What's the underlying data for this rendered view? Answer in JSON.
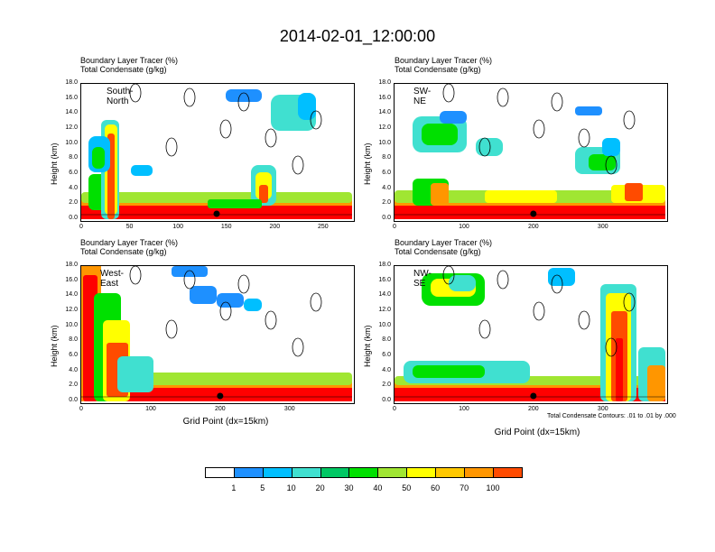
{
  "title": "2014-02-01_12:00:00",
  "panels": [
    {
      "label": "South-North",
      "header1": "Boundary Layer Tracer   (%)",
      "header2": "Total Condensate   (g/kg)",
      "ylabel": "Height (km)",
      "xlabel": "",
      "yticks": [
        "18.0",
        "16.0",
        "14.0",
        "12.0",
        "10.0",
        "8.0",
        "6.0",
        "4.0",
        "2.0",
        "0.0"
      ],
      "xticks": [
        "0",
        "50",
        "100",
        "150",
        "200",
        "250"
      ],
      "xmax": 280,
      "marker_x": 140
    },
    {
      "label": "SW-NE",
      "header1": "Boundary Layer Tracer   (%)",
      "header2": "Total Condensate   (g/kg)",
      "ylabel": "Height (km)",
      "xlabel": "",
      "yticks": [
        "18.0",
        "16.0",
        "14.0",
        "12.0",
        "10.0",
        "8.0",
        "6.0",
        "4.0",
        "2.0",
        "0.0"
      ],
      "xticks": [
        "0",
        "100",
        "200",
        "300"
      ],
      "xmax": 390,
      "marker_x": 200
    },
    {
      "label": "West-East",
      "header1": "Boundary Layer Tracer   (%)",
      "header2": "Total Condensate   (g/kg)",
      "ylabel": "Height (km)",
      "xlabel": "Grid Point (dx=15km)",
      "yticks": [
        "18.0",
        "16.0",
        "14.0",
        "12.0",
        "10.0",
        "8.0",
        "6.0",
        "4.0",
        "2.0",
        "0.0"
      ],
      "xticks": [
        "0",
        "100",
        "200",
        "300"
      ],
      "xmax": 390,
      "marker_x": 200
    },
    {
      "label": "NW-SE",
      "header1": "Boundary Layer Tracer   (%)",
      "header2": "Total Condensate   (g/kg)",
      "ylabel": "Height (km)",
      "xlabel": "Grid Point (dx=15km)",
      "note": "Total Condensate Contours: .01 to .01 by .000",
      "yticks": [
        "18.0",
        "16.0",
        "14.0",
        "12.0",
        "10.0",
        "8.0",
        "6.0",
        "4.0",
        "2.0",
        "0.0"
      ],
      "xticks": [
        "0",
        "100",
        "200",
        "300"
      ],
      "xmax": 390,
      "marker_x": 200
    }
  ],
  "colorbar": {
    "labels": [
      "1",
      "5",
      "10",
      "20",
      "30",
      "40",
      "50",
      "60",
      "70",
      "100"
    ],
    "colors": [
      "#ffffff",
      "#1e90ff",
      "#00bfff",
      "#40e0d0",
      "#00c864",
      "#00e000",
      "#a0e632",
      "#ffff00",
      "#ffc800",
      "#ff9600",
      "#ff4b00",
      "#ff0000"
    ]
  },
  "chart_data": {
    "type": "heatmap",
    "title": "2014-02-01_12:00:00",
    "variables": [
      "Boundary Layer Tracer (%)",
      "Total Condensate (g/kg)"
    ],
    "contour_note": "Total Condensate Contours: .01 to .01 by .000",
    "colorbar_levels": [
      1,
      5,
      10,
      20,
      30,
      40,
      50,
      60,
      70,
      100
    ],
    "ylim": [
      0,
      18
    ],
    "ylabel": "Height (km)",
    "xlabel": "Grid Point (dx=15km)",
    "panels": [
      {
        "name": "South-North",
        "xlim": [
          0,
          280
        ],
        "high_tracer_regions": [
          {
            "x": [
              25,
              40
            ],
            "z": [
              0,
              13
            ]
          },
          {
            "x": [
              180,
              200
            ],
            "z": [
              2,
              7
            ]
          }
        ]
      },
      {
        "name": "SW-NE",
        "xlim": [
          0,
          390
        ],
        "high_tracer_regions": [
          {
            "x": [
              20,
              60
            ],
            "z": [
              0,
              4
            ]
          },
          {
            "x": [
              270,
              320
            ],
            "z": [
              5,
              9
            ]
          }
        ]
      },
      {
        "name": "West-East",
        "xlim": [
          0,
          390
        ],
        "high_tracer_regions": [
          {
            "x": [
              0,
              25
            ],
            "z": [
              0,
              17
            ]
          },
          {
            "x": [
              20,
              60
            ],
            "z": [
              0,
              6
            ]
          }
        ]
      },
      {
        "name": "NW-SE",
        "xlim": [
          0,
          390
        ],
        "high_tracer_regions": [
          {
            "x": [
              240,
              270
            ],
            "z": [
              0,
              15
            ]
          },
          {
            "x": [
              20,
              120
            ],
            "z": [
              8,
              16
            ]
          }
        ]
      }
    ]
  }
}
